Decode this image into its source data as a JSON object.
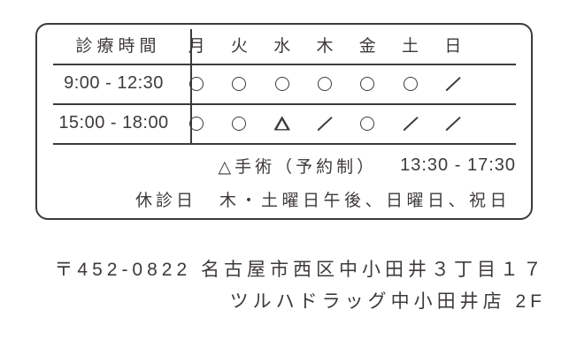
{
  "colors": {
    "ink": "#3e3a39",
    "background": "#ffffff"
  },
  "schedule": {
    "header": "診療時間",
    "days": [
      "月",
      "火",
      "水",
      "木",
      "金",
      "土",
      "日"
    ],
    "rows": [
      {
        "time": "9:00 - 12:30",
        "marks": [
          "open",
          "open",
          "open",
          "open",
          "open",
          "open",
          "closed"
        ]
      },
      {
        "time": "15:00 - 18:00",
        "marks": [
          "open",
          "open",
          "surgery",
          "closed",
          "open",
          "closed",
          "closed"
        ]
      }
    ],
    "symbols": {
      "open": "○",
      "surgery": "△",
      "closed": "／"
    },
    "surgery_note": {
      "label": "△手術（予約制）",
      "time": "13:30 - 17:30"
    },
    "closed_note": {
      "label": "休診日",
      "text": "木・土曜日午後、日曜日、祝日"
    }
  },
  "address": {
    "line1": "〒452-0822 名古屋市西区中小田井３丁目１７",
    "line2": "ツルハドラッグ中小田井店 2F"
  }
}
